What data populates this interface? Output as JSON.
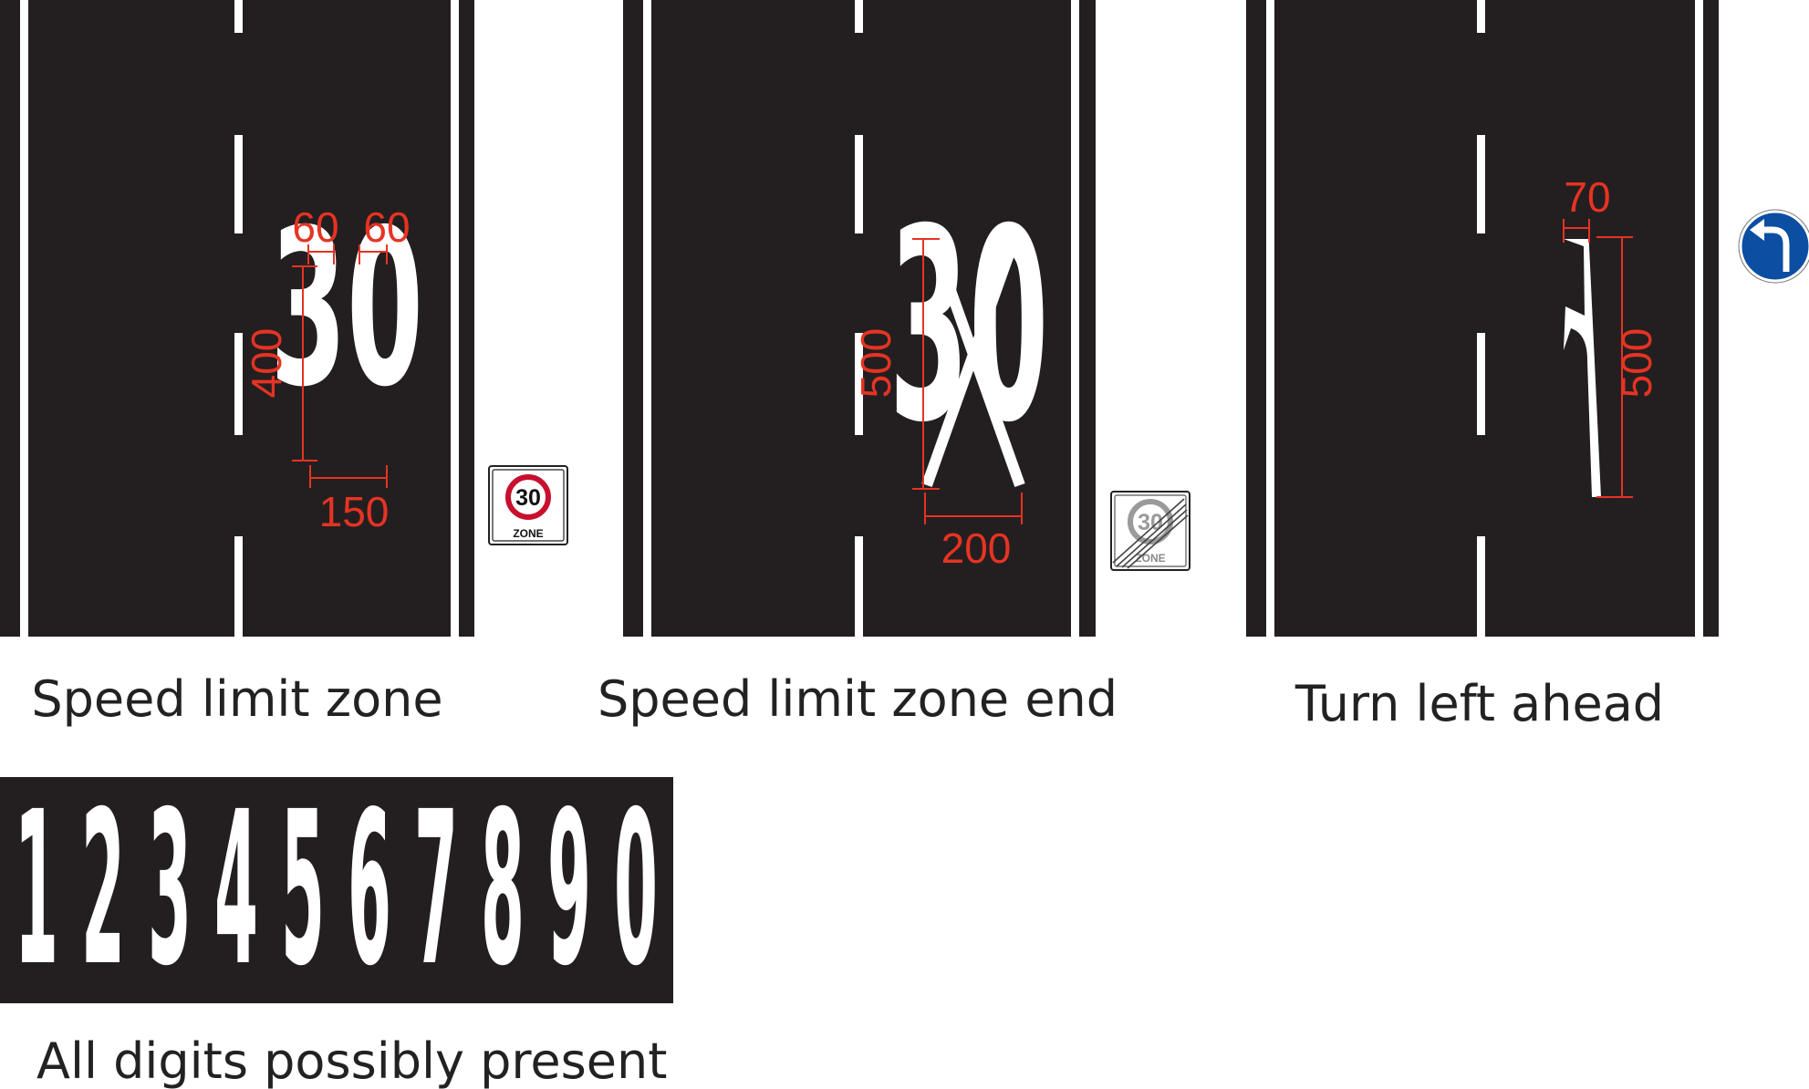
{
  "colors": {
    "asphalt": "#231f20",
    "marking": "#ffffff",
    "dimension": "#e63323",
    "caption": "#222222",
    "sign_red": "#c8102e",
    "sign_blue": "#0b4ea2",
    "sign_grey": "#9a9a9a"
  },
  "panels": [
    {
      "caption": "Speed limit zone",
      "marking": "30",
      "dimensions": {
        "digit_width_left": "60",
        "digit_width_right": "60",
        "height": "400",
        "total_width": "150"
      },
      "sign": {
        "icon": "speed-limit-zone-sign-icon",
        "number": "30",
        "text": "ZONE"
      }
    },
    {
      "caption": "Speed limit zone end",
      "marking": "30",
      "dimensions": {
        "height": "500",
        "total_width": "200"
      },
      "sign": {
        "icon": "speed-limit-zone-end-sign-icon",
        "number": "30",
        "text": "ZONE"
      }
    },
    {
      "caption": "Turn left ahead",
      "marking": "left-turn-arrow",
      "dimensions": {
        "arrow_width": "70",
        "height": "500"
      },
      "sign": {
        "icon": "turn-left-ahead-sign-icon"
      }
    }
  ],
  "digits_strip": {
    "caption": "All digits possibly present",
    "digits": [
      "1",
      "2",
      "3",
      "4",
      "5",
      "6",
      "7",
      "8",
      "9",
      "0"
    ]
  }
}
